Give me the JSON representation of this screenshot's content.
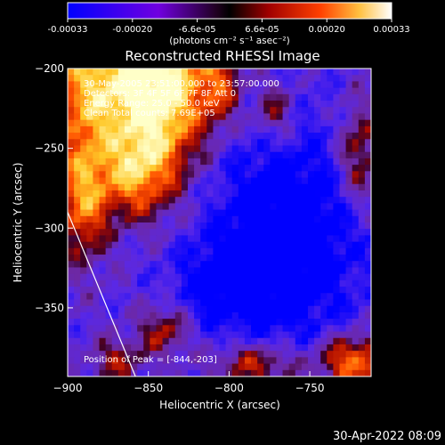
{
  "colorbar": {
    "tick_labels": [
      "-0.00033",
      "-0.00020",
      "-6.6e-05",
      "6.6e-05",
      "0.00020",
      "0.00033"
    ],
    "range": [
      -0.00033,
      0.00033
    ],
    "units_label": "(photons cm⁻² s⁻¹ asec⁻²)"
  },
  "chart_data": {
    "type": "heatmap",
    "title": "Reconstructed RHESSI Image",
    "xlabel": "Heliocentric X (arcsec)",
    "ylabel": "Heliocentric Y (arcsec)",
    "xlim": [
      -900,
      -712
    ],
    "ylim": [
      -393,
      -200
    ],
    "x_ticks": [
      -900,
      -850,
      -800,
      -750
    ],
    "y_ticks": [
      -200,
      -250,
      -300,
      -350
    ],
    "x_tick_labels": [
      "−900",
      "−850",
      "−800",
      "−750"
    ],
    "y_tick_labels": [
      "−200",
      "−250",
      "−300",
      "−350"
    ],
    "colormap": [
      "#0000ff",
      "#8000d0",
      "#000000",
      "#a00000",
      "#ff5000",
      "#ffff80",
      "#ffffff"
    ],
    "peak": [
      -844,
      -203
    ],
    "limb_line": [
      [
        -900,
        -290
      ],
      [
        -858,
        -393
      ]
    ],
    "annotations": [
      "30-May-2005 23:51:00.000 to 23:57:00.000",
      "Detectors: 3F 4F 5F 6F 7F 8F  Att 0",
      "Energy Range: 25.0 - 50.0 keV",
      "Clean    Total counts: 7.69E+05",
      "Position of Peak = [-844,-203]"
    ]
  },
  "footer": {
    "timestamp": "30-Apr-2022 08:09"
  }
}
